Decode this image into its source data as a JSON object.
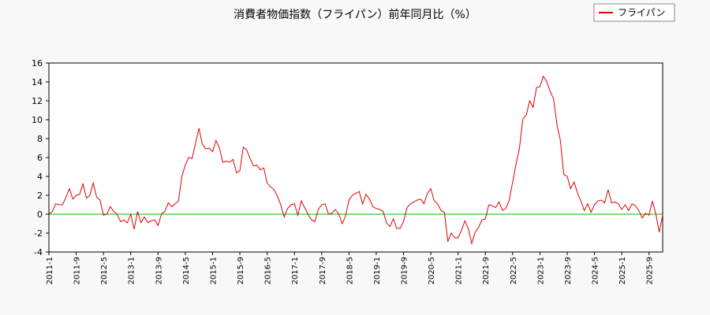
{
  "chart_data": {
    "type": "line",
    "title": "消費者物価指数（フライパン）前年同月比（%）",
    "categories": [
      "2011-1",
      null,
      null,
      null,
      null,
      null,
      null,
      null,
      "2011-9",
      null,
      null,
      null,
      null,
      null,
      null,
      null,
      "2012-5",
      null,
      null,
      null,
      null,
      null,
      null,
      null,
      "2013-1",
      null,
      null,
      null,
      null,
      null,
      null,
      null,
      "2013-9",
      null,
      null,
      null,
      null,
      null,
      null,
      null,
      "2014-5",
      null,
      null,
      null,
      null,
      null,
      null,
      null,
      "2015-1",
      null,
      null,
      null,
      null,
      null,
      null,
      null,
      "2015-9",
      null,
      null,
      null,
      null,
      null,
      null,
      null,
      "2016-5",
      null,
      null,
      null,
      null,
      null,
      null,
      null,
      "2017-1",
      null,
      null,
      null,
      null,
      null,
      null,
      null,
      "2017-9",
      null,
      null,
      null,
      null,
      null,
      null,
      null,
      "2018-5",
      null,
      null,
      null,
      null,
      null,
      null,
      null,
      "2019-1",
      null,
      null,
      null,
      null,
      null,
      null,
      null,
      "2019-9",
      null,
      null,
      null,
      null,
      null,
      null,
      null,
      "2020-5",
      null,
      null,
      null,
      null,
      null,
      null,
      null,
      "2021-1",
      null,
      null,
      null,
      null,
      null,
      null,
      null,
      "2021-9",
      null,
      null,
      null,
      null,
      null,
      null,
      null,
      "2022-5",
      null,
      null,
      null,
      null,
      null,
      null,
      null,
      "2023-1",
      null,
      null,
      null,
      null,
      null,
      null,
      null,
      "2023-9",
      null,
      null,
      null,
      null,
      null,
      null,
      null,
      "2024-5",
      null,
      null,
      null,
      null,
      null,
      null,
      null,
      "2025-1",
      null,
      null,
      null,
      null,
      null,
      null,
      null,
      "2025-9",
      null,
      null,
      null,
      null
    ],
    "series": [
      {
        "name": "フライパン",
        "color": "#e00000",
        "values": [
          0.0,
          0.3,
          1.1,
          1.0,
          1.0,
          1.8,
          2.7,
          1.6,
          2.0,
          2.1,
          3.2,
          1.7,
          2.0,
          3.3,
          1.8,
          1.5,
          -0.1,
          0.0,
          0.8,
          0.3,
          0.0,
          -0.8,
          -0.6,
          -0.9,
          0.0,
          -1.6,
          0.3,
          -0.9,
          -0.3,
          -0.9,
          -0.7,
          -0.6,
          -1.2,
          0.0,
          0.3,
          1.2,
          0.8,
          1.1,
          1.4,
          4.0,
          5.2,
          6.0,
          5.9,
          7.5,
          9.1,
          7.4,
          6.9,
          7.0,
          6.6,
          7.8,
          7.0,
          5.5,
          5.6,
          5.5,
          5.8,
          4.4,
          4.6,
          7.1,
          6.8,
          5.9,
          5.1,
          5.2,
          4.7,
          4.9,
          3.3,
          2.9,
          2.6,
          1.9,
          1.0,
          -0.3,
          0.6,
          1.0,
          1.1,
          -0.1,
          1.4,
          0.7,
          0.0,
          -0.6,
          -0.8,
          0.5,
          1.0,
          1.1,
          0.0,
          0.1,
          0.5,
          0.0,
          -1.0,
          -0.2,
          1.5,
          2.0,
          2.2,
          2.4,
          1.1,
          2.1,
          1.6,
          0.8,
          0.6,
          0.5,
          0.3,
          -0.9,
          -1.3,
          -0.5,
          -1.5,
          -1.5,
          -0.8,
          0.7,
          1.1,
          1.3,
          1.5,
          1.6,
          1.1,
          2.2,
          2.7,
          1.4,
          1.1,
          0.4,
          0.2,
          -2.9,
          -2.0,
          -2.5,
          -2.5,
          -1.7,
          -0.7,
          -1.5,
          -3.1,
          -1.9,
          -1.4,
          -0.6,
          -0.5,
          1.0,
          0.9,
          0.7,
          1.3,
          0.4,
          0.6,
          1.5,
          3.4,
          5.3,
          7.0,
          10.1,
          10.5,
          12.0,
          11.3,
          13.4,
          13.5,
          14.6,
          14.0,
          13.0,
          12.2,
          9.5,
          7.8,
          4.2,
          4.0,
          2.7,
          3.4,
          2.3,
          1.4,
          0.4,
          1.1,
          0.2,
          1.0,
          1.4,
          1.5,
          1.2,
          2.6,
          1.2,
          1.3,
          1.1,
          0.5,
          1.0,
          0.4,
          1.1,
          0.9,
          0.4,
          -0.4,
          0.1,
          -0.1,
          1.4,
          0.0,
          -1.9,
          -0.1
        ]
      }
    ],
    "ylim": [
      -4,
      16
    ],
    "yticks": [
      -4,
      -2,
      0,
      2,
      4,
      6,
      8,
      10,
      12,
      14,
      16
    ],
    "zero_line_color": "#00bb00",
    "legend": "upper right"
  }
}
